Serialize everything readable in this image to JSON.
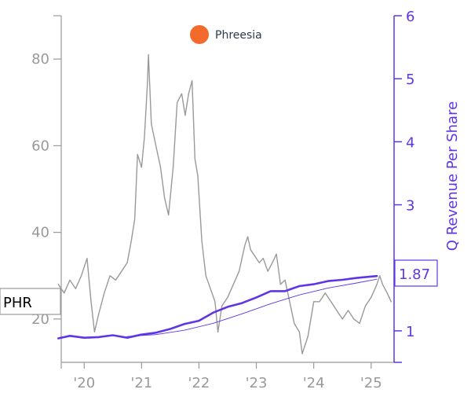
{
  "company": {
    "name": "Phreesia",
    "logo_color": "#f26b2d"
  },
  "chart_data": {
    "type": "line",
    "ticker": "PHR",
    "last_revenue_per_share": "1.87",
    "colors": {
      "price": "#999999",
      "revenue": "#5f35e6",
      "axis_left": "#999999",
      "axis_right": "#5f35e6"
    },
    "xlim": [
      2019.6,
      2025.4
    ],
    "x_ticks": [
      {
        "x": 2020,
        "label": "'20"
      },
      {
        "x": 2021,
        "label": "'21"
      },
      {
        "x": 2022,
        "label": "'22"
      },
      {
        "x": 2023,
        "label": "'23"
      },
      {
        "x": 2024,
        "label": "'24"
      },
      {
        "x": 2025,
        "label": "'25"
      }
    ],
    "y_left": {
      "label": "",
      "lim": [
        10,
        90
      ],
      "ticks": [
        {
          "v": 20,
          "label": "20"
        },
        {
          "v": 40,
          "label": "40"
        },
        {
          "v": 60,
          "label": "60"
        },
        {
          "v": 80,
          "label": "80"
        }
      ]
    },
    "y_right": {
      "label": "Q Revenue Per Share",
      "lim": [
        0.5,
        6.0
      ],
      "ticks": [
        {
          "v": 1,
          "label": "1"
        },
        {
          "v": 2,
          "label": ""
        },
        {
          "v": 3,
          "label": "3"
        },
        {
          "v": 4,
          "label": "4"
        },
        {
          "v": 5,
          "label": "5"
        },
        {
          "v": 6,
          "label": "6"
        }
      ]
    },
    "series": [
      {
        "axis": "left",
        "style": "price",
        "points": [
          [
            2019.55,
            28
          ],
          [
            2019.65,
            26
          ],
          [
            2019.75,
            29
          ],
          [
            2019.85,
            27
          ],
          [
            2019.95,
            30
          ],
          [
            2020.05,
            34
          ],
          [
            2020.12,
            24
          ],
          [
            2020.18,
            17
          ],
          [
            2020.25,
            21
          ],
          [
            2020.35,
            26
          ],
          [
            2020.45,
            30
          ],
          [
            2020.55,
            29
          ],
          [
            2020.65,
            31
          ],
          [
            2020.75,
            33
          ],
          [
            2020.82,
            38
          ],
          [
            2020.88,
            43
          ],
          [
            2020.93,
            58
          ],
          [
            2021.0,
            55
          ],
          [
            2021.05,
            62
          ],
          [
            2021.1,
            74
          ],
          [
            2021.12,
            81
          ],
          [
            2021.17,
            65
          ],
          [
            2021.25,
            60
          ],
          [
            2021.33,
            55
          ],
          [
            2021.4,
            48
          ],
          [
            2021.47,
            44
          ],
          [
            2021.55,
            55
          ],
          [
            2021.62,
            70
          ],
          [
            2021.7,
            72
          ],
          [
            2021.76,
            67
          ],
          [
            2021.82,
            72
          ],
          [
            2021.88,
            75
          ],
          [
            2021.93,
            57
          ],
          [
            2021.98,
            53
          ],
          [
            2022.05,
            38
          ],
          [
            2022.12,
            30
          ],
          [
            2022.2,
            27
          ],
          [
            2022.28,
            24
          ],
          [
            2022.33,
            17
          ],
          [
            2022.4,
            23
          ],
          [
            2022.5,
            25
          ],
          [
            2022.6,
            28
          ],
          [
            2022.7,
            31
          ],
          [
            2022.8,
            37
          ],
          [
            2022.85,
            39
          ],
          [
            2022.9,
            36
          ],
          [
            2022.95,
            35
          ],
          [
            2023.05,
            33
          ],
          [
            2023.12,
            34
          ],
          [
            2023.2,
            31
          ],
          [
            2023.28,
            33
          ],
          [
            2023.35,
            35
          ],
          [
            2023.42,
            28
          ],
          [
            2023.5,
            29
          ],
          [
            2023.58,
            24
          ],
          [
            2023.66,
            19
          ],
          [
            2023.75,
            17
          ],
          [
            2023.8,
            12
          ],
          [
            2023.9,
            16
          ],
          [
            2024.0,
            24
          ],
          [
            2024.1,
            24
          ],
          [
            2024.2,
            26
          ],
          [
            2024.3,
            24
          ],
          [
            2024.4,
            22
          ],
          [
            2024.5,
            20
          ],
          [
            2024.6,
            22
          ],
          [
            2024.7,
            20
          ],
          [
            2024.8,
            19
          ],
          [
            2024.9,
            23
          ],
          [
            2025.0,
            25
          ],
          [
            2025.1,
            28
          ],
          [
            2025.15,
            30
          ],
          [
            2025.2,
            28
          ],
          [
            2025.28,
            26
          ],
          [
            2025.35,
            24
          ]
        ]
      },
      {
        "axis": "right",
        "style": "revenue",
        "points": [
          [
            2019.55,
            0.88
          ],
          [
            2019.75,
            0.92
          ],
          [
            2020.0,
            0.89
          ],
          [
            2020.25,
            0.9
          ],
          [
            2020.5,
            0.93
          ],
          [
            2020.75,
            0.89
          ],
          [
            2021.0,
            0.94
          ],
          [
            2021.25,
            0.97
          ],
          [
            2021.5,
            1.03
          ],
          [
            2021.75,
            1.11
          ],
          [
            2022.0,
            1.16
          ],
          [
            2022.25,
            1.29
          ],
          [
            2022.5,
            1.38
          ],
          [
            2022.75,
            1.44
          ],
          [
            2023.0,
            1.53
          ],
          [
            2023.25,
            1.63
          ],
          [
            2023.5,
            1.63
          ],
          [
            2023.75,
            1.71
          ],
          [
            2024.0,
            1.74
          ],
          [
            2024.25,
            1.79
          ],
          [
            2024.5,
            1.81
          ],
          [
            2024.75,
            1.84
          ],
          [
            2025.1,
            1.87
          ]
        ]
      },
      {
        "axis": "right",
        "style": "revenue_trend",
        "points": [
          [
            2020.75,
            0.91
          ],
          [
            2021.25,
            0.94
          ],
          [
            2021.75,
            1.01
          ],
          [
            2022.25,
            1.12
          ],
          [
            2022.75,
            1.27
          ],
          [
            2023.25,
            1.43
          ],
          [
            2023.75,
            1.57
          ],
          [
            2024.25,
            1.68
          ],
          [
            2024.75,
            1.76
          ],
          [
            2025.1,
            1.82
          ]
        ]
      }
    ]
  }
}
